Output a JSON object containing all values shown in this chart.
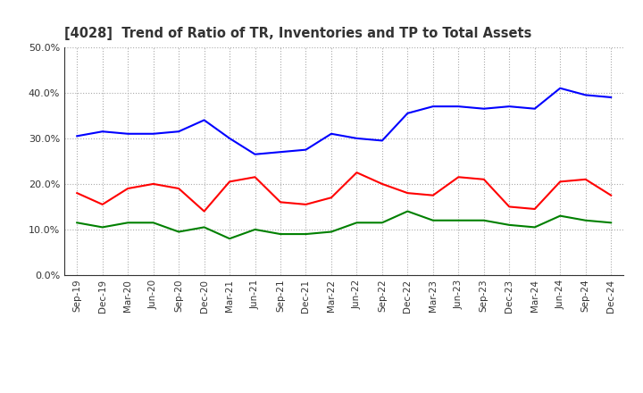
{
  "title": "[4028]  Trend of Ratio of TR, Inventories and TP to Total Assets",
  "x_labels": [
    "Sep-19",
    "Dec-19",
    "Mar-20",
    "Jun-20",
    "Sep-20",
    "Dec-20",
    "Mar-21",
    "Jun-21",
    "Sep-21",
    "Dec-21",
    "Mar-22",
    "Jun-22",
    "Sep-22",
    "Dec-22",
    "Mar-23",
    "Jun-23",
    "Sep-23",
    "Dec-23",
    "Mar-24",
    "Jun-24",
    "Sep-24",
    "Dec-24"
  ],
  "trade_receivables": [
    0.18,
    0.155,
    0.19,
    0.2,
    0.19,
    0.14,
    0.205,
    0.215,
    0.16,
    0.155,
    0.17,
    0.225,
    0.2,
    0.18,
    0.175,
    0.215,
    0.21,
    0.15,
    0.145,
    0.205,
    0.21,
    0.175
  ],
  "inventories": [
    0.305,
    0.315,
    0.31,
    0.31,
    0.315,
    0.34,
    0.3,
    0.265,
    0.27,
    0.275,
    0.31,
    0.3,
    0.295,
    0.355,
    0.37,
    0.37,
    0.365,
    0.37,
    0.365,
    0.41,
    0.395,
    0.39
  ],
  "trade_payables": [
    0.115,
    0.105,
    0.115,
    0.115,
    0.095,
    0.105,
    0.08,
    0.1,
    0.09,
    0.09,
    0.095,
    0.115,
    0.115,
    0.14,
    0.12,
    0.12,
    0.12,
    0.11,
    0.105,
    0.13,
    0.12,
    0.115
  ],
  "tr_color": "#ff0000",
  "inv_color": "#0000ff",
  "tp_color": "#008000",
  "ylim": [
    0.0,
    0.5
  ],
  "yticks": [
    0.0,
    0.1,
    0.2,
    0.3,
    0.4,
    0.5
  ],
  "background_color": "#ffffff",
  "grid_color": "#aaaaaa",
  "title_color": "#333333"
}
